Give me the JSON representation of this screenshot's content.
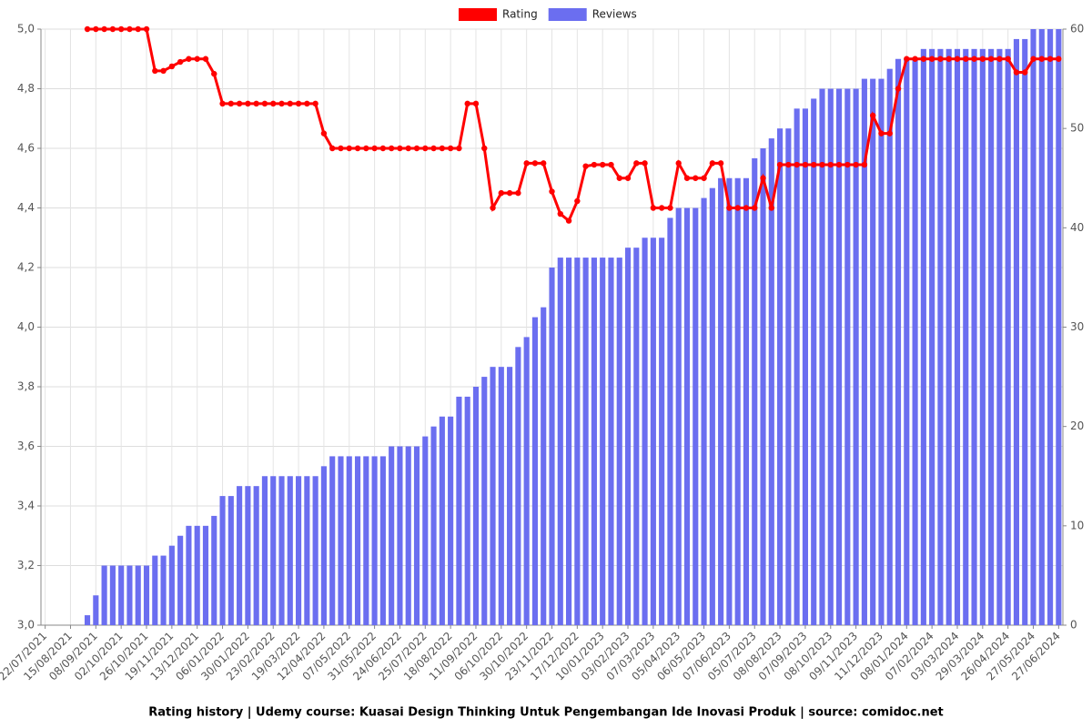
{
  "chart_data": {
    "type": "bar-line",
    "title": "Rating history | Udemy course: Kuasai Design Thinking Untuk Pengembangan Ide Inovasi Produk | source: comidoc.net",
    "categories": [
      "22/07/2021",
      null,
      null,
      "15/08/2021",
      null,
      null,
      "08/09/2021",
      null,
      null,
      "02/10/2021",
      null,
      null,
      "26/10/2021",
      null,
      null,
      "19/11/2021",
      null,
      null,
      "13/12/2021",
      null,
      null,
      "06/01/2022",
      null,
      null,
      "30/01/2022",
      null,
      null,
      "23/02/2022",
      null,
      null,
      "19/03/2022",
      null,
      null,
      "12/04/2022",
      null,
      null,
      "07/05/2022",
      null,
      null,
      "31/05/2022",
      null,
      null,
      "24/06/2022",
      null,
      null,
      "25/07/2022",
      null,
      null,
      "18/08/2022",
      null,
      null,
      "11/09/2022",
      null,
      null,
      "06/10/2022",
      null,
      null,
      "30/10/2022",
      null,
      null,
      "23/11/2022",
      null,
      null,
      "17/12/2022",
      null,
      null,
      "10/01/2023",
      null,
      null,
      "03/02/2023",
      null,
      null,
      "07/03/2023",
      null,
      null,
      "05/04/2023",
      null,
      null,
      "06/05/2023",
      null,
      null,
      "07/06/2023",
      null,
      null,
      "05/07/2023",
      null,
      null,
      "08/08/2023",
      null,
      null,
      "07/09/2023",
      null,
      null,
      "08/10/2023",
      null,
      null,
      "09/11/2023",
      null,
      null,
      "11/12/2023",
      null,
      null,
      "08/01/2024",
      null,
      null,
      "07/02/2024",
      null,
      null,
      "03/03/2024",
      null,
      null,
      "29/03/2024",
      null,
      null,
      "26/04/2024",
      null,
      null,
      "27/05/2024",
      null,
      null,
      "27/06/2024"
    ],
    "series": [
      {
        "name": "Rating",
        "type": "line",
        "color": "#ff0000",
        "values": [
          null,
          null,
          null,
          null,
          null,
          5,
          5,
          5,
          5,
          5,
          5,
          5,
          5,
          4.86,
          4.86,
          4.875,
          4.89,
          4.9,
          4.9,
          4.9,
          4.85,
          4.75,
          4.75,
          4.75,
          4.75,
          4.75,
          4.75,
          4.75,
          4.75,
          4.75,
          4.75,
          4.75,
          4.75,
          4.65,
          4.6,
          4.6,
          4.6,
          4.6,
          4.6,
          4.6,
          4.6,
          4.6,
          4.6,
          4.6,
          4.6,
          4.6,
          4.6,
          4.6,
          4.6,
          4.6,
          4.75,
          4.75,
          4.6,
          4.4,
          4.45,
          4.45,
          4.45,
          4.55,
          4.55,
          4.55,
          4.455,
          4.38,
          4.357,
          4.423,
          4.54,
          4.545,
          4.545,
          4.545,
          4.5,
          4.5,
          4.55,
          4.55,
          4.4,
          4.4,
          4.4,
          4.55,
          4.5,
          4.5,
          4.5,
          4.55,
          4.55,
          4.4,
          4.4,
          4.4,
          4.4,
          4.5,
          4.4,
          4.545,
          4.545,
          4.545,
          4.545,
          4.545,
          4.545,
          4.545,
          4.545,
          4.545,
          4.545,
          4.545,
          4.71,
          4.65,
          4.65,
          4.8,
          4.9,
          4.9,
          4.9,
          4.9,
          4.9,
          4.9,
          4.9,
          4.9,
          4.9,
          4.9,
          4.9,
          4.9,
          4.9,
          4.855,
          4.855,
          4.9,
          4.9,
          4.9,
          4.9
        ]
      },
      {
        "name": "Reviews",
        "type": "bar",
        "axis": "y2",
        "color": "#6b6ef0",
        "values": [
          null,
          null,
          null,
          null,
          null,
          1,
          3,
          6,
          6,
          6,
          6,
          6,
          6,
          7,
          7,
          8,
          9,
          10,
          10,
          10,
          11,
          13,
          13,
          14,
          14,
          14,
          15,
          15,
          15,
          15,
          15,
          15,
          15,
          16,
          17,
          17,
          17,
          17,
          17,
          17,
          17,
          18,
          18,
          18,
          18,
          19,
          20,
          21,
          21,
          23,
          23,
          24,
          25,
          26,
          26,
          26,
          28,
          29,
          31,
          32,
          36,
          37,
          37,
          37,
          37,
          37,
          37,
          37,
          37,
          38,
          38,
          39,
          39,
          39,
          41,
          42,
          42,
          42,
          43,
          44,
          45,
          45,
          45,
          45,
          47,
          48,
          49,
          50,
          50,
          52,
          52,
          53,
          54,
          54,
          54,
          54,
          54,
          55,
          55,
          55,
          56,
          57,
          57,
          57,
          58,
          58,
          58,
          58,
          58,
          58,
          58,
          58,
          58,
          58,
          58,
          59,
          59,
          60,
          60,
          60,
          60
        ]
      }
    ],
    "ylim": [
      3,
      5
    ],
    "yticks": [
      {
        "value": 3,
        "label": "3,0"
      },
      {
        "value": 3.2,
        "label": "3,2"
      },
      {
        "value": 3.4,
        "label": "3,4"
      },
      {
        "value": 3.6,
        "label": "3,6"
      },
      {
        "value": 3.8,
        "label": "3,8"
      },
      {
        "value": 4,
        "label": "4,0"
      },
      {
        "value": 4.2,
        "label": "4,2"
      },
      {
        "value": 4.4,
        "label": "4,4"
      },
      {
        "value": 4.6,
        "label": "4,6"
      },
      {
        "value": 4.8,
        "label": "4,8"
      },
      {
        "value": 5,
        "label": "5,0"
      }
    ],
    "y2lim": [
      0,
      60
    ],
    "y2ticks": [
      0,
      10,
      20,
      30,
      40,
      50,
      60
    ],
    "grid": true,
    "legend": "top"
  }
}
